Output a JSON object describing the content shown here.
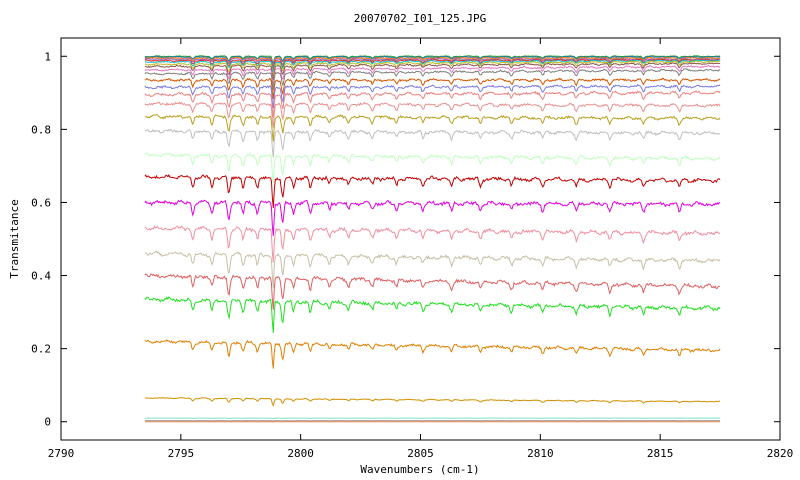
{
  "chart_data": {
    "type": "line",
    "title": "20070702_I01_125.JPG",
    "xlabel": "Wavenumbers (cm-1)",
    "ylabel": "Transmitance",
    "xlim": [
      2790,
      2820
    ],
    "ylim": [
      -0.05,
      1.05
    ],
    "x_ticks": [
      2790,
      2795,
      2800,
      2805,
      2810,
      2815,
      2820
    ],
    "x_tick_labels": [
      "2790",
      "2795",
      "2800",
      "2805",
      "2810",
      "2815",
      "2820"
    ],
    "y_ticks": [
      0,
      0.2,
      0.4,
      0.6,
      0.8,
      1
    ],
    "y_tick_labels": [
      "0",
      "0.2",
      "0.4",
      "0.6",
      "0.8",
      "1"
    ],
    "grid": false,
    "legend": "none",
    "x_range": [
      2793.5,
      2817.5
    ],
    "absorption_lines": [
      2795.5,
      2796.3,
      2797.0,
      2797.6,
      2798.2,
      2798.85,
      2799.25,
      2799.7,
      2800.4,
      2801.2,
      2802.0,
      2803.0,
      2804.0,
      2805.1,
      2806.3,
      2807.5,
      2808.8,
      2810.1,
      2811.5,
      2812.9,
      2814.3,
      2815.8
    ],
    "series": [
      {
        "level_start": 1.0,
        "level_end": 1.0,
        "depth": 0.02,
        "color": "#2ca02c"
      },
      {
        "level_start": 0.998,
        "level_end": 0.998,
        "depth": 0.02,
        "color": "#1f77b4"
      },
      {
        "level_start": 0.995,
        "level_end": 0.995,
        "depth": 0.025,
        "color": "#ff7f0e"
      },
      {
        "level_start": 0.992,
        "level_end": 0.992,
        "depth": 0.025,
        "color": "#9467bd"
      },
      {
        "level_start": 0.988,
        "level_end": 0.99,
        "depth": 0.03,
        "color": "#d62728"
      },
      {
        "level_start": 0.984,
        "level_end": 0.988,
        "depth": 0.03,
        "color": "#17becf"
      },
      {
        "level_start": 0.978,
        "level_end": 0.985,
        "depth": 0.035,
        "color": "#bcbd22"
      },
      {
        "level_start": 0.972,
        "level_end": 0.98,
        "depth": 0.04,
        "color": "#8c564b"
      },
      {
        "level_start": 0.962,
        "level_end": 0.972,
        "depth": 0.045,
        "color": "#e377c2"
      },
      {
        "level_start": 0.952,
        "level_end": 0.962,
        "depth": 0.05,
        "color": "#7f7f7f"
      },
      {
        "level_start": 0.935,
        "level_end": 0.935,
        "depth": 0.055,
        "color": "#d45500"
      },
      {
        "level_start": 0.915,
        "level_end": 0.918,
        "depth": 0.06,
        "color": "#7a7ae0"
      },
      {
        "level_start": 0.895,
        "level_end": 0.9,
        "depth": 0.065,
        "color": "#f08080"
      },
      {
        "level_start": 0.87,
        "level_end": 0.865,
        "depth": 0.065,
        "color": "#e89090"
      },
      {
        "level_start": 0.835,
        "level_end": 0.83,
        "depth": 0.07,
        "color": "#b8a020"
      },
      {
        "level_start": 0.795,
        "level_end": 0.79,
        "depth": 0.075,
        "color": "#c0c0c0"
      },
      {
        "level_start": 0.73,
        "level_end": 0.72,
        "depth": 0.08,
        "color": "#c0ffc0"
      },
      {
        "level_start": 0.67,
        "level_end": 0.66,
        "depth": 0.085,
        "color": "#c00000"
      },
      {
        "level_start": 0.6,
        "level_end": 0.595,
        "depth": 0.09,
        "color": "#e000e0"
      },
      {
        "level_start": 0.53,
        "level_end": 0.515,
        "depth": 0.09,
        "color": "#f090a0"
      },
      {
        "level_start": 0.46,
        "level_end": 0.44,
        "depth": 0.09,
        "color": "#c8c0a8"
      },
      {
        "level_start": 0.4,
        "level_end": 0.37,
        "depth": 0.09,
        "color": "#e06060"
      },
      {
        "level_start": 0.335,
        "level_end": 0.31,
        "depth": 0.09,
        "color": "#20e020"
      },
      {
        "level_start": 0.22,
        "level_end": 0.195,
        "depth": 0.07,
        "color": "#e08000"
      },
      {
        "level_start": 0.065,
        "level_end": 0.055,
        "depth": 0.02,
        "color": "#d09000"
      },
      {
        "level_start": 0.01,
        "level_end": 0.01,
        "depth": 0.002,
        "color": "#80e0c0"
      },
      {
        "level_start": 0.003,
        "level_end": 0.003,
        "depth": 0.001,
        "color": "#a0a0a0"
      },
      {
        "level_start": 0.0,
        "level_end": 0.0,
        "depth": 0.0,
        "color": "#e08040"
      }
    ]
  }
}
